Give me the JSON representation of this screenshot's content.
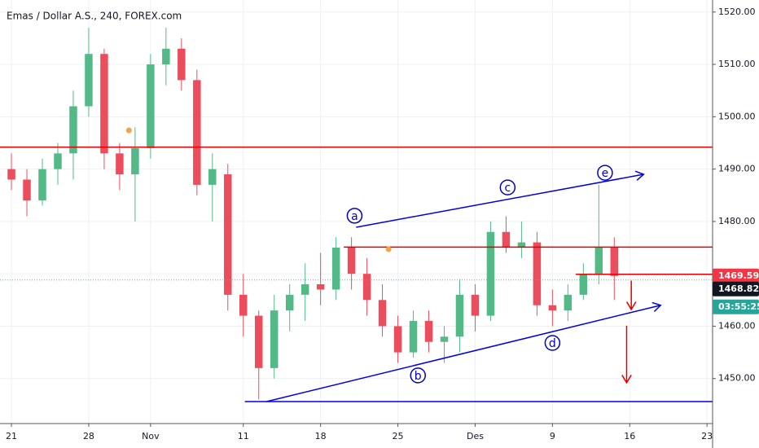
{
  "chart_data": {
    "type": "candlestick",
    "title": "Emas / Dollar A.S., 240, FOREX.com",
    "x": [
      0,
      1,
      2,
      3,
      4,
      5,
      6,
      7,
      8,
      9,
      10,
      11,
      12,
      13,
      14,
      15,
      16,
      17,
      18,
      19,
      20,
      21,
      22,
      23,
      24,
      25,
      26,
      27,
      28,
      29,
      30,
      31,
      32,
      33,
      34,
      35,
      36,
      37,
      38,
      39
    ],
    "open": [
      1490,
      1488,
      1484,
      1490,
      1493,
      1502,
      1512,
      1493,
      1489,
      1494,
      1510,
      1513,
      1507,
      1487,
      1489,
      1466,
      1462,
      1452,
      1463,
      1466,
      1468,
      1467,
      1475,
      1470,
      1465,
      1460,
      1455,
      1461,
      1457,
      1458,
      1466,
      1462,
      1478,
      1475,
      1476,
      1464,
      1463,
      1466,
      1470,
      1475
    ],
    "high": [
      1493,
      1490,
      1492,
      1495,
      1505,
      1517,
      1513,
      1495,
      1498,
      1512,
      1517,
      1515,
      1509,
      1493,
      1491,
      1470,
      1463,
      1466,
      1468,
      1472,
      1474,
      1477,
      1477,
      1473,
      1468,
      1462,
      1463,
      1463,
      1460,
      1469,
      1468,
      1480,
      1481,
      1480,
      1478,
      1467,
      1468,
      1472,
      1487,
      1477
    ],
    "low": [
      1486,
      1481,
      1483,
      1487,
      1488,
      1500,
      1490,
      1486,
      1480,
      1492,
      1506,
      1505,
      1485,
      1480,
      1463,
      1458,
      1446,
      1450,
      1459,
      1461,
      1464,
      1465,
      1467,
      1462,
      1458,
      1453,
      1454,
      1455,
      1453,
      1455,
      1459,
      1461,
      1474,
      1473,
      1462,
      1460,
      1461,
      1465,
      1468,
      1465
    ],
    "close": [
      1488,
      1484,
      1490,
      1493,
      1502,
      1512,
      1493,
      1489,
      1494,
      1510,
      1513,
      1507,
      1487,
      1490,
      1466,
      1462,
      1452,
      1463,
      1466,
      1468,
      1467,
      1475,
      1470,
      1465,
      1460,
      1455,
      1461,
      1457,
      1458,
      1466,
      1462,
      1478,
      1475,
      1476,
      1464,
      1463,
      1466,
      1470,
      1475,
      1469.59
    ],
    "up_color": "#53b987",
    "down_color": "#eb4d5c",
    "xlim": [
      -0.74,
      45.36
    ],
    "ylim": [
      1441.4,
      1522.3
    ],
    "xticks": [
      {
        "value": 0,
        "label": "21"
      },
      {
        "value": 5,
        "label": "28"
      },
      {
        "value": 9,
        "label": "Nov"
      },
      {
        "value": 15,
        "label": "11"
      },
      {
        "value": 20,
        "label": "18"
      },
      {
        "value": 25,
        "label": "25"
      },
      {
        "value": 30,
        "label": "Des"
      },
      {
        "value": 35,
        "label": "9"
      },
      {
        "value": 40,
        "label": "16"
      },
      {
        "value": 45,
        "label": "23"
      }
    ],
    "yticks": [
      {
        "value": 1450,
        "label": "1450.00"
      },
      {
        "value": 1460,
        "label": "1460.00"
      },
      {
        "value": 1470,
        "label": "1470.00"
      },
      {
        "value": 1480,
        "label": "1480.00"
      },
      {
        "value": 1490,
        "label": "1490.00"
      },
      {
        "value": 1500,
        "label": "1500.00"
      },
      {
        "value": 1510,
        "label": "1510.00"
      },
      {
        "value": 1520,
        "label": "1520.00"
      }
    ],
    "grid": true,
    "lines": [
      {
        "x": [
          -0.74,
          45.36
        ],
        "y": [
          1494.2,
          1494.2
        ],
        "color": "#e00000"
      },
      {
        "x": [
          21.5,
          45.36
        ],
        "y": [
          1475.1,
          1475.1
        ],
        "color": "#e00000"
      },
      {
        "x": [
          36.5,
          45.36
        ],
        "y": [
          1469.9,
          1469.9
        ],
        "color": "#e00000"
      },
      {
        "x": [
          22.3,
          40.9
        ],
        "y": [
          1478.9,
          1489.0
        ],
        "color": "#0000e0",
        "arrow": true
      },
      {
        "x": [
          16.5,
          42.0
        ],
        "y": [
          1445.6,
          1464.0
        ],
        "color": "#0000e0",
        "arrow": true
      },
      {
        "x": [
          15.1,
          45.36
        ],
        "y": [
          1445.6,
          1445.6
        ],
        "color": "#0000e0"
      },
      {
        "x": [
          40.1,
          40.1
        ],
        "y": [
          1468.7,
          1463.2
        ],
        "color": "#e00000",
        "arrow": true
      },
      {
        "x": [
          39.8,
          39.8
        ],
        "y": [
          1460.1,
          1449.2
        ],
        "color": "#e00000",
        "arrow": true
      }
    ],
    "labels": [
      {
        "text": "a",
        "x": 22.2,
        "y": 1481.1
      },
      {
        "text": "b",
        "x": 26.3,
        "y": 1450.6
      },
      {
        "text": "c",
        "x": 32.1,
        "y": 1486.5
      },
      {
        "text": "d",
        "x": 35.0,
        "y": 1456.8
      },
      {
        "text": "e",
        "x": 38.4,
        "y": 1489.3
      }
    ],
    "markers": [
      {
        "x": 7.6,
        "y": 1497.4,
        "color": "#f5a34a"
      },
      {
        "x": 24.4,
        "y": 1474.7,
        "color": "#f5a34a"
      }
    ],
    "price_tags": [
      {
        "value": 1469.59,
        "color": "#f23645"
      },
      {
        "value": 1468.82,
        "color": "#131722"
      }
    ],
    "countdown": "03:55:25",
    "countdown_color": "#26a69a"
  }
}
